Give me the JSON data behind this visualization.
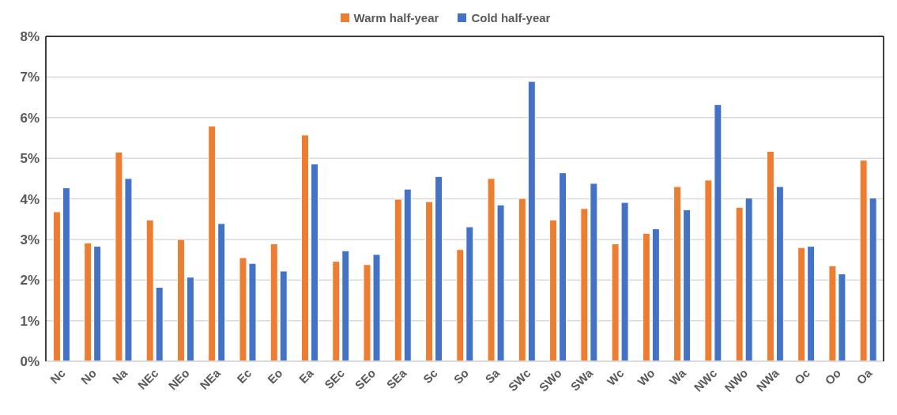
{
  "chart_data": {
    "type": "bar",
    "categories": [
      "Nc",
      "No",
      "Na",
      "NEc",
      "NEo",
      "NEa",
      "Ec",
      "Eo",
      "Ea",
      "SEc",
      "SEo",
      "SEa",
      "Sc",
      "So",
      "Sa",
      "SWc",
      "SWo",
      "SWa",
      "Wc",
      "Wo",
      "Wa",
      "NWc",
      "NWo",
      "NWa",
      "Oc",
      "Oo",
      "Oa"
    ],
    "series": [
      {
        "name": "Warm half-year",
        "color": "#ed7d31",
        "values": [
          3.68,
          2.91,
          5.15,
          3.48,
          3.0,
          5.79,
          2.55,
          2.89,
          5.57,
          2.46,
          2.38,
          3.99,
          3.93,
          2.75,
          4.5,
          4.01,
          3.48,
          3.76,
          2.89,
          3.15,
          4.3,
          4.46,
          3.79,
          5.17,
          2.8,
          2.35,
          4.95
        ]
      },
      {
        "name": "Cold half-year",
        "color": "#4472c4",
        "values": [
          4.27,
          2.83,
          4.5,
          1.82,
          2.07,
          3.39,
          2.41,
          2.22,
          4.86,
          2.72,
          2.63,
          4.24,
          4.55,
          3.31,
          3.85,
          6.89,
          4.64,
          4.38,
          3.91,
          3.26,
          3.73,
          6.32,
          4.02,
          4.3,
          2.83,
          2.15,
          4.02
        ]
      }
    ],
    "ylim": [
      0,
      8
    ],
    "yticks": [
      {
        "value": 0,
        "label": "0%"
      },
      {
        "value": 1,
        "label": "1%"
      },
      {
        "value": 2,
        "label": "2%"
      },
      {
        "value": 3,
        "label": "3%"
      },
      {
        "value": 4,
        "label": "4%"
      },
      {
        "value": 5,
        "label": "5%"
      },
      {
        "value": 6,
        "label": "6%"
      },
      {
        "value": 7,
        "label": "7%"
      },
      {
        "value": 8,
        "label": "8%"
      }
    ],
    "grid": "y",
    "legend": "top"
  }
}
